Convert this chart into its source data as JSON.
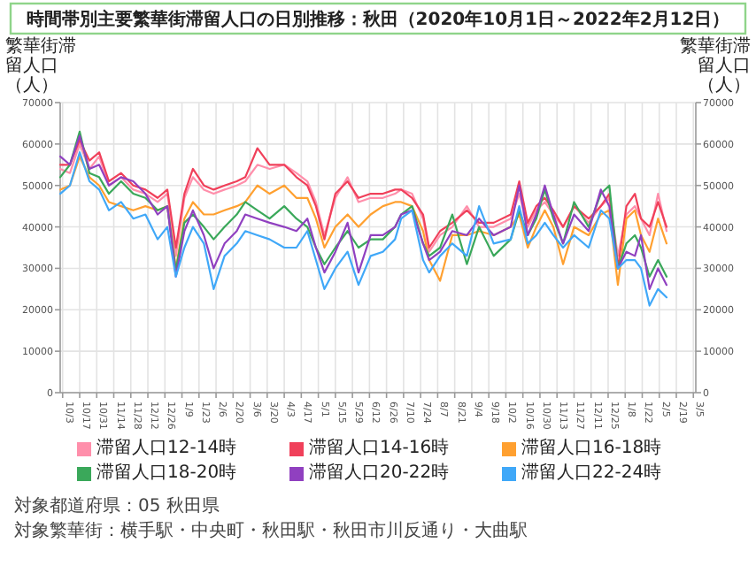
{
  "chart_data": {
    "type": "line",
    "title": "時間帯別主要繁華街滞留人口の日別推移：秋田（2020年10月1日～2022年2月12日）",
    "ylabel": "繁華街滞留人口（人）",
    "y2label": "繁華街滞留人口（人）",
    "annotations": [
      "対象都道府県：05 秋田県",
      "対象繁華街：横手駅・中央町・秋田駅・秋田市川反通り・大曲駅"
    ],
    "legend": "bottom",
    "grid": true,
    "marker": "none",
    "line_style": "solid",
    "xlim": [
      "2020-10-01",
      "2022-03-07"
    ],
    "xticks": [
      {
        "value": "2020-10-03",
        "label": "10/3"
      },
      {
        "value": "2020-10-17",
        "label": "10/17"
      },
      {
        "value": "2020-10-31",
        "label": "10/31"
      },
      {
        "value": "2020-11-14",
        "label": "11/14"
      },
      {
        "value": "2020-11-28",
        "label": "11/28"
      },
      {
        "value": "2020-12-12",
        "label": "12/12"
      },
      {
        "value": "2020-12-26",
        "label": "12/26"
      },
      {
        "value": "2021-01-09",
        "label": "1/9"
      },
      {
        "value": "2021-01-23",
        "label": "1/23"
      },
      {
        "value": "2021-02-06",
        "label": "2/6"
      },
      {
        "value": "2021-02-20",
        "label": "2/20"
      },
      {
        "value": "2021-03-06",
        "label": "3/6"
      },
      {
        "value": "2021-03-20",
        "label": "3/20"
      },
      {
        "value": "2021-04-03",
        "label": "4/3"
      },
      {
        "value": "2021-04-17",
        "label": "4/17"
      },
      {
        "value": "2021-05-01",
        "label": "5/1"
      },
      {
        "value": "2021-05-15",
        "label": "5/15"
      },
      {
        "value": "2021-05-29",
        "label": "5/29"
      },
      {
        "value": "2021-06-12",
        "label": "6/12"
      },
      {
        "value": "2021-06-26",
        "label": "6/26"
      },
      {
        "value": "2021-07-10",
        "label": "7/10"
      },
      {
        "value": "2021-07-24",
        "label": "7/24"
      },
      {
        "value": "2021-08-07",
        "label": "8/7"
      },
      {
        "value": "2021-08-21",
        "label": "8/21"
      },
      {
        "value": "2021-09-04",
        "label": "9/4"
      },
      {
        "value": "2021-09-18",
        "label": "9/18"
      },
      {
        "value": "2021-10-02",
        "label": "10/2"
      },
      {
        "value": "2021-10-16",
        "label": "10/16"
      },
      {
        "value": "2021-10-30",
        "label": "10/30"
      },
      {
        "value": "2021-11-13",
        "label": "11/13"
      },
      {
        "value": "2021-11-27",
        "label": "11/27"
      },
      {
        "value": "2021-12-11",
        "label": "12/11"
      },
      {
        "value": "2021-12-25",
        "label": "12/25"
      },
      {
        "value": "2022-01-08",
        "label": "1/8"
      },
      {
        "value": "2022-01-22",
        "label": "1/22"
      },
      {
        "value": "2022-02-05",
        "label": "2/5"
      },
      {
        "value": "2022-02-19",
        "label": "2/19"
      },
      {
        "value": "2022-03-05",
        "label": "3/5"
      }
    ],
    "ylim": [
      0,
      70000
    ],
    "yticks": [
      0,
      10000,
      20000,
      30000,
      40000,
      50000,
      60000,
      70000
    ],
    "y2lim": [
      0,
      70000
    ],
    "y2ticks": [
      0,
      10000,
      20000,
      30000,
      40000,
      50000,
      60000,
      70000
    ],
    "x": [
      "2020-10-01",
      "2020-10-09",
      "2020-10-17",
      "2020-10-25",
      "2020-11-02",
      "2020-11-10",
      "2020-11-20",
      "2020-11-30",
      "2020-12-10",
      "2020-12-20",
      "2020-12-28",
      "2021-01-04",
      "2021-01-11",
      "2021-01-18",
      "2021-01-27",
      "2021-02-04",
      "2021-02-13",
      "2021-02-23",
      "2021-03-02",
      "2021-03-12",
      "2021-03-22",
      "2021-04-03",
      "2021-04-13",
      "2021-04-22",
      "2021-04-29",
      "2021-05-06",
      "2021-05-15",
      "2021-05-25",
      "2021-06-03",
      "2021-06-13",
      "2021-06-23",
      "2021-07-03",
      "2021-07-08",
      "2021-07-17",
      "2021-07-26",
      "2021-07-31",
      "2021-08-09",
      "2021-08-19",
      "2021-08-31",
      "2021-09-10",
      "2021-09-22",
      "2021-10-06",
      "2021-10-13",
      "2021-10-20",
      "2021-10-27",
      "2021-11-03",
      "2021-11-10",
      "2021-11-18",
      "2021-11-27",
      "2021-12-09",
      "2021-12-19",
      "2021-12-26",
      "2022-01-02",
      "2022-01-09",
      "2022-01-16",
      "2022-01-21",
      "2022-01-28",
      "2022-02-04",
      "2022-02-11"
    ],
    "series": [
      {
        "name": "滞留人口12-14時",
        "color": "#ff8fab",
        "values": [
          54000,
          53000,
          60000,
          54000,
          57000,
          50000,
          52000,
          49000,
          48000,
          46000,
          48000,
          33000,
          47000,
          52000,
          49000,
          48000,
          49000,
          50000,
          51000,
          55000,
          54000,
          55000,
          53000,
          51000,
          46000,
          38000,
          47000,
          52000,
          46000,
          47000,
          47000,
          48000,
          49000,
          48000,
          42000,
          34000,
          38000,
          40000,
          45000,
          40000,
          40000,
          42000,
          48000,
          40000,
          44000,
          46000,
          43000,
          40000,
          45000,
          41000,
          45000,
          47000,
          33000,
          43000,
          45000,
          42000,
          38000,
          48000,
          39000
        ]
      },
      {
        "name": "滞留人口14-16時",
        "color": "#f0405a",
        "values": [
          55000,
          55000,
          61000,
          56000,
          58000,
          51000,
          53000,
          50000,
          49000,
          47000,
          49000,
          35000,
          48000,
          54000,
          50000,
          49000,
          50000,
          51000,
          52000,
          59000,
          55000,
          55000,
          52000,
          50000,
          45000,
          37000,
          48000,
          51000,
          47000,
          48000,
          48000,
          49000,
          49000,
          47000,
          43000,
          35000,
          39000,
          41000,
          44000,
          41000,
          41000,
          43000,
          51000,
          41000,
          45000,
          47000,
          44000,
          40000,
          45000,
          42000,
          45000,
          48000,
          30000,
          45000,
          48000,
          42000,
          40000,
          46000,
          40000
        ]
      },
      {
        "name": "滞留人口16-18時",
        "color": "#ffa030",
        "values": [
          49000,
          50000,
          57000,
          52000,
          50000,
          46000,
          45000,
          44000,
          45000,
          44000,
          45000,
          30000,
          42000,
          46000,
          43000,
          43000,
          44000,
          45000,
          46000,
          50000,
          48000,
          50000,
          47000,
          47000,
          42000,
          35000,
          40000,
          43000,
          40000,
          43000,
          45000,
          46000,
          46000,
          45000,
          39000,
          32000,
          27000,
          38000,
          38000,
          39000,
          38000,
          40000,
          43000,
          35000,
          40000,
          44000,
          40000,
          31000,
          40000,
          38000,
          43000,
          44000,
          26000,
          42000,
          44000,
          38000,
          34000,
          42000,
          36000
        ]
      },
      {
        "name": "滞留人口18-20時",
        "color": "#3aa85a",
        "values": [
          52000,
          55000,
          63000,
          53000,
          52000,
          48000,
          51000,
          48000,
          47000,
          44000,
          45000,
          29500,
          41000,
          43000,
          40000,
          37000,
          40000,
          43000,
          46000,
          44000,
          42000,
          45000,
          42000,
          40000,
          35000,
          31000,
          35000,
          39000,
          35000,
          37000,
          37000,
          40000,
          43000,
          45000,
          36000,
          33000,
          35000,
          43000,
          31000,
          40000,
          33000,
          37000,
          44000,
          38000,
          42000,
          49000,
          42000,
          36000,
          46000,
          40000,
          48000,
          50000,
          30000,
          36000,
          38000,
          35000,
          28000,
          32000,
          28000
        ]
      },
      {
        "name": "滞留人口20-22時",
        "color": "#9040c0",
        "values": [
          57000,
          55000,
          62000,
          54000,
          55000,
          50000,
          52000,
          51000,
          48000,
          43000,
          45000,
          28000,
          39000,
          44000,
          38000,
          30000,
          36000,
          39000,
          43000,
          42000,
          41000,
          40000,
          39000,
          42000,
          35000,
          29000,
          34000,
          41000,
          29000,
          38000,
          38000,
          40000,
          43000,
          44000,
          36000,
          32000,
          34000,
          39000,
          38000,
          42000,
          38000,
          40000,
          50000,
          38000,
          43000,
          50000,
          43000,
          36000,
          43000,
          39000,
          49000,
          45000,
          30000,
          34000,
          33000,
          38000,
          25000,
          30000,
          26000
        ]
      },
      {
        "name": "滞留人口22-24時",
        "color": "#40a8f8",
        "values": [
          48000,
          50000,
          58000,
          51000,
          49000,
          44000,
          46000,
          42000,
          43000,
          37000,
          40000,
          28000,
          35000,
          40000,
          36000,
          25000,
          33000,
          36000,
          39000,
          38000,
          37000,
          35000,
          35000,
          39000,
          32000,
          25000,
          30000,
          34000,
          26000,
          33000,
          34000,
          37000,
          42000,
          44000,
          32000,
          29000,
          33000,
          36000,
          33000,
          45000,
          36000,
          37000,
          45000,
          36000,
          38000,
          41000,
          38000,
          35000,
          38000,
          35000,
          44000,
          42000,
          30000,
          32000,
          32000,
          30000,
          21000,
          25000,
          23000
        ]
      }
    ]
  }
}
